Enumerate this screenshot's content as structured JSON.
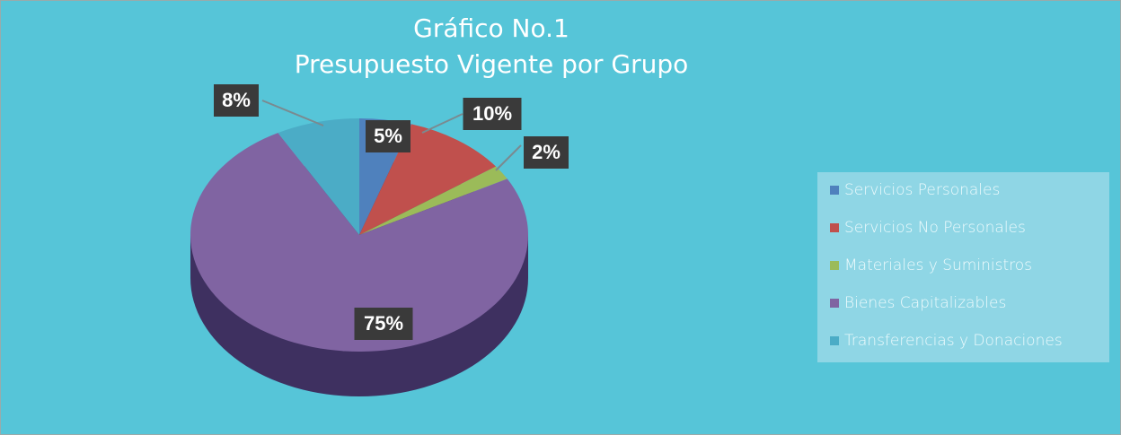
{
  "chart_data": {
    "type": "pie",
    "title": "Gráfico No.1",
    "subtitle": "Presupuesto Vigente por Grupo",
    "categories": [
      "Servicios Personales",
      "Servicios No Personales",
      "Materiales y Suministros",
      "Bienes Capitalizables",
      "Transferencias y Donaciones"
    ],
    "values": [
      5,
      10,
      2,
      75,
      8
    ],
    "value_labels": [
      "5%",
      "10%",
      "2%",
      "75%",
      "8%"
    ],
    "colors": [
      "#4f81bd",
      "#c0504d",
      "#9bbb59",
      "#8064a2",
      "#4bacc6"
    ],
    "legend": "right"
  }
}
